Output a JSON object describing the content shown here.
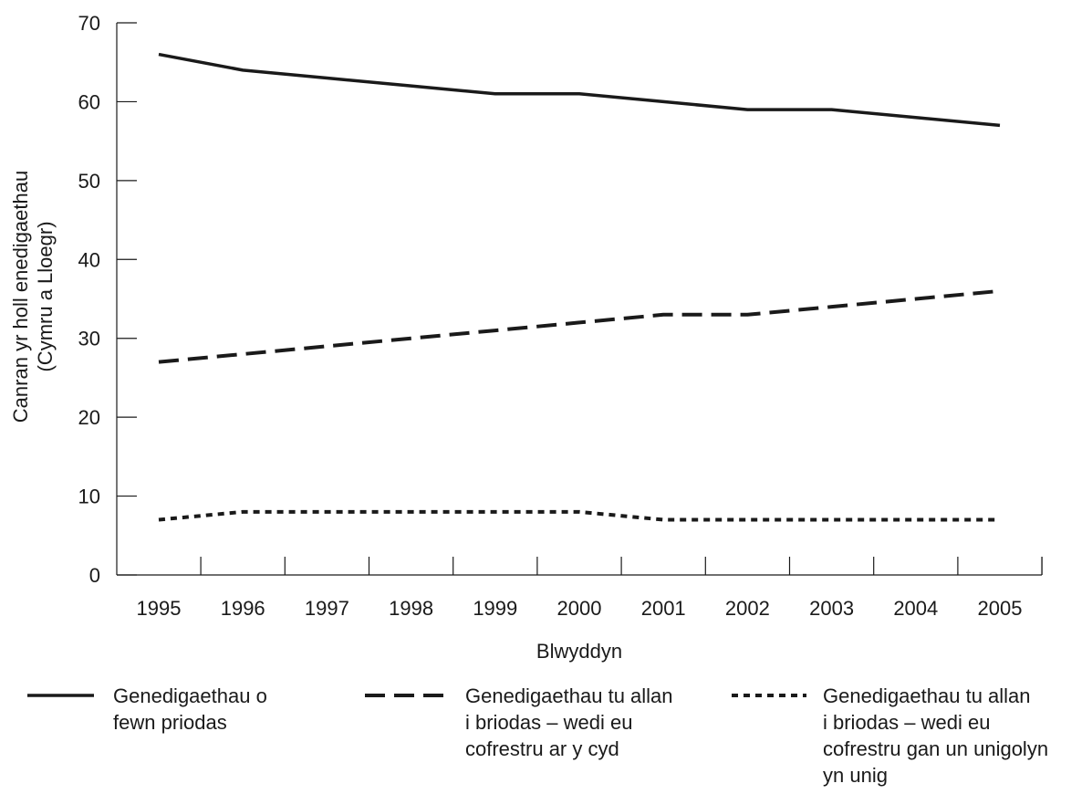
{
  "chart_data": {
    "type": "line",
    "title": "",
    "xlabel": "Blwyddyn",
    "ylabel_lines": [
      "Canran yr holl enedigaethau",
      "(Cymru a Lloegr)"
    ],
    "x": [
      1995,
      1996,
      1997,
      1998,
      1999,
      2000,
      2001,
      2002,
      2003,
      2004,
      2005
    ],
    "x_tick_labels": [
      "1995",
      "1996",
      "1997",
      "1998",
      "1999",
      "2000",
      "2001",
      "2002",
      "2003",
      "2004",
      "2005"
    ],
    "ylim": [
      0,
      70
    ],
    "y_ticks": [
      0,
      10,
      20,
      30,
      40,
      50,
      60,
      70
    ],
    "y_tick_labels": [
      "0",
      "10",
      "20",
      "30",
      "40",
      "50",
      "60",
      "70"
    ],
    "grid": false,
    "legend_position": "bottom",
    "series": [
      {
        "name_lines": [
          "Genedigaethau o",
          "fewn priodas"
        ],
        "style": "solid",
        "values": [
          66,
          64,
          63,
          62,
          61,
          61,
          60,
          59,
          59,
          58,
          57
        ]
      },
      {
        "name_lines": [
          "Genedigaethau tu allan",
          "i briodas – wedi eu",
          "cofrestru ar y cyd"
        ],
        "style": "dashed",
        "values": [
          27,
          28,
          29,
          30,
          31,
          32,
          33,
          33,
          34,
          35,
          36
        ]
      },
      {
        "name_lines": [
          "Genedigaethau tu allan",
          "i briodas – wedi eu",
          "cofrestru gan un unigolyn",
          "yn unig"
        ],
        "style": "dotted",
        "values": [
          7,
          8,
          8,
          8,
          8,
          8,
          7,
          7,
          7,
          7,
          7
        ]
      }
    ],
    "line_color": "#1a1a1a"
  }
}
